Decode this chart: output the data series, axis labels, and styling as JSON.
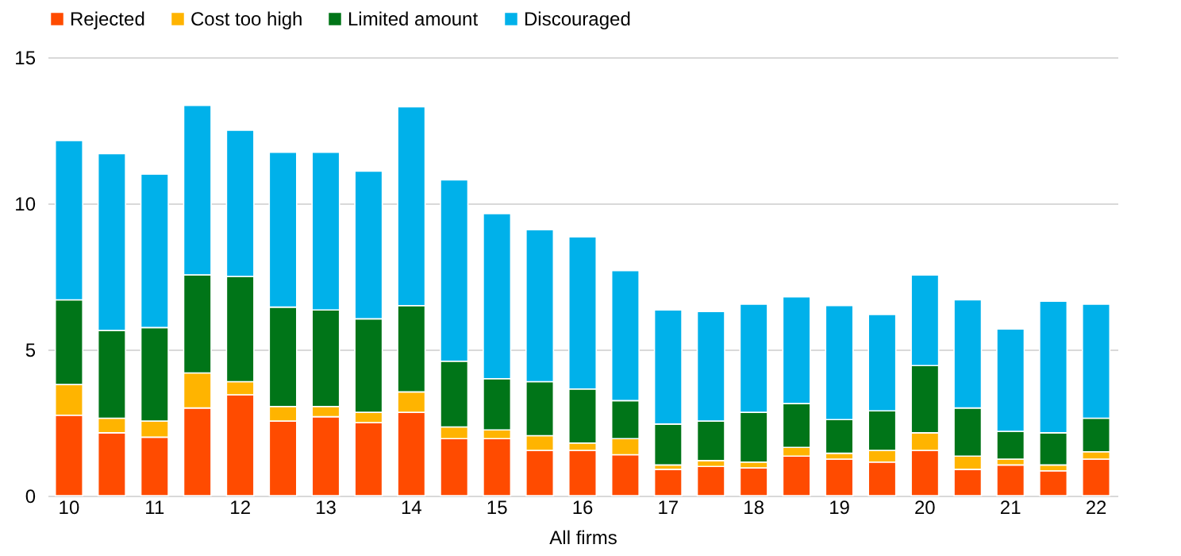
{
  "chart_data": {
    "type": "bar",
    "stacked": true,
    "xlabel": "All firms",
    "legend": "top",
    "grid": "y",
    "categories": [
      "10",
      null,
      "11",
      null,
      "12",
      null,
      "13",
      null,
      "14",
      null,
      "15",
      null,
      "16",
      null,
      "17",
      null,
      "18",
      null,
      "19",
      null,
      "20",
      null,
      "21",
      null,
      "22"
    ],
    "ylim": [
      0,
      15
    ],
    "yticks": [
      0,
      5,
      10,
      15
    ],
    "series": [
      {
        "name": "Rejected",
        "color": "#ff4b00",
        "values": [
          2.75,
          2.15,
          2.0,
          3.0,
          3.45,
          2.55,
          2.7,
          2.5,
          2.85,
          1.95,
          1.95,
          1.55,
          1.55,
          1.4,
          0.9,
          1.0,
          0.95,
          1.35,
          1.25,
          1.15,
          1.55,
          0.9,
          1.05,
          0.85,
          1.25
        ]
      },
      {
        "name": "Cost too high",
        "color": "#ffb400",
        "values": [
          1.05,
          0.5,
          0.55,
          1.2,
          0.45,
          0.5,
          0.35,
          0.35,
          0.7,
          0.4,
          0.3,
          0.5,
          0.25,
          0.55,
          0.15,
          0.2,
          0.2,
          0.3,
          0.2,
          0.4,
          0.6,
          0.45,
          0.2,
          0.2,
          0.25
        ]
      },
      {
        "name": "Limited amount",
        "color": "#007518",
        "values": [
          2.9,
          3.0,
          3.2,
          3.35,
          3.6,
          3.4,
          3.3,
          3.2,
          2.95,
          2.25,
          1.75,
          1.85,
          1.85,
          1.3,
          1.4,
          1.35,
          1.7,
          1.5,
          1.15,
          1.35,
          2.3,
          1.65,
          0.95,
          1.1,
          1.15
        ]
      },
      {
        "name": "Discouraged",
        "color": "#00b1ea",
        "values": [
          5.45,
          6.05,
          5.25,
          5.8,
          5.0,
          5.3,
          5.4,
          5.05,
          6.8,
          6.2,
          5.65,
          5.2,
          5.2,
          4.45,
          3.9,
          3.75,
          3.7,
          3.65,
          3.9,
          3.3,
          3.1,
          3.7,
          3.5,
          4.5,
          3.9
        ]
      }
    ]
  }
}
